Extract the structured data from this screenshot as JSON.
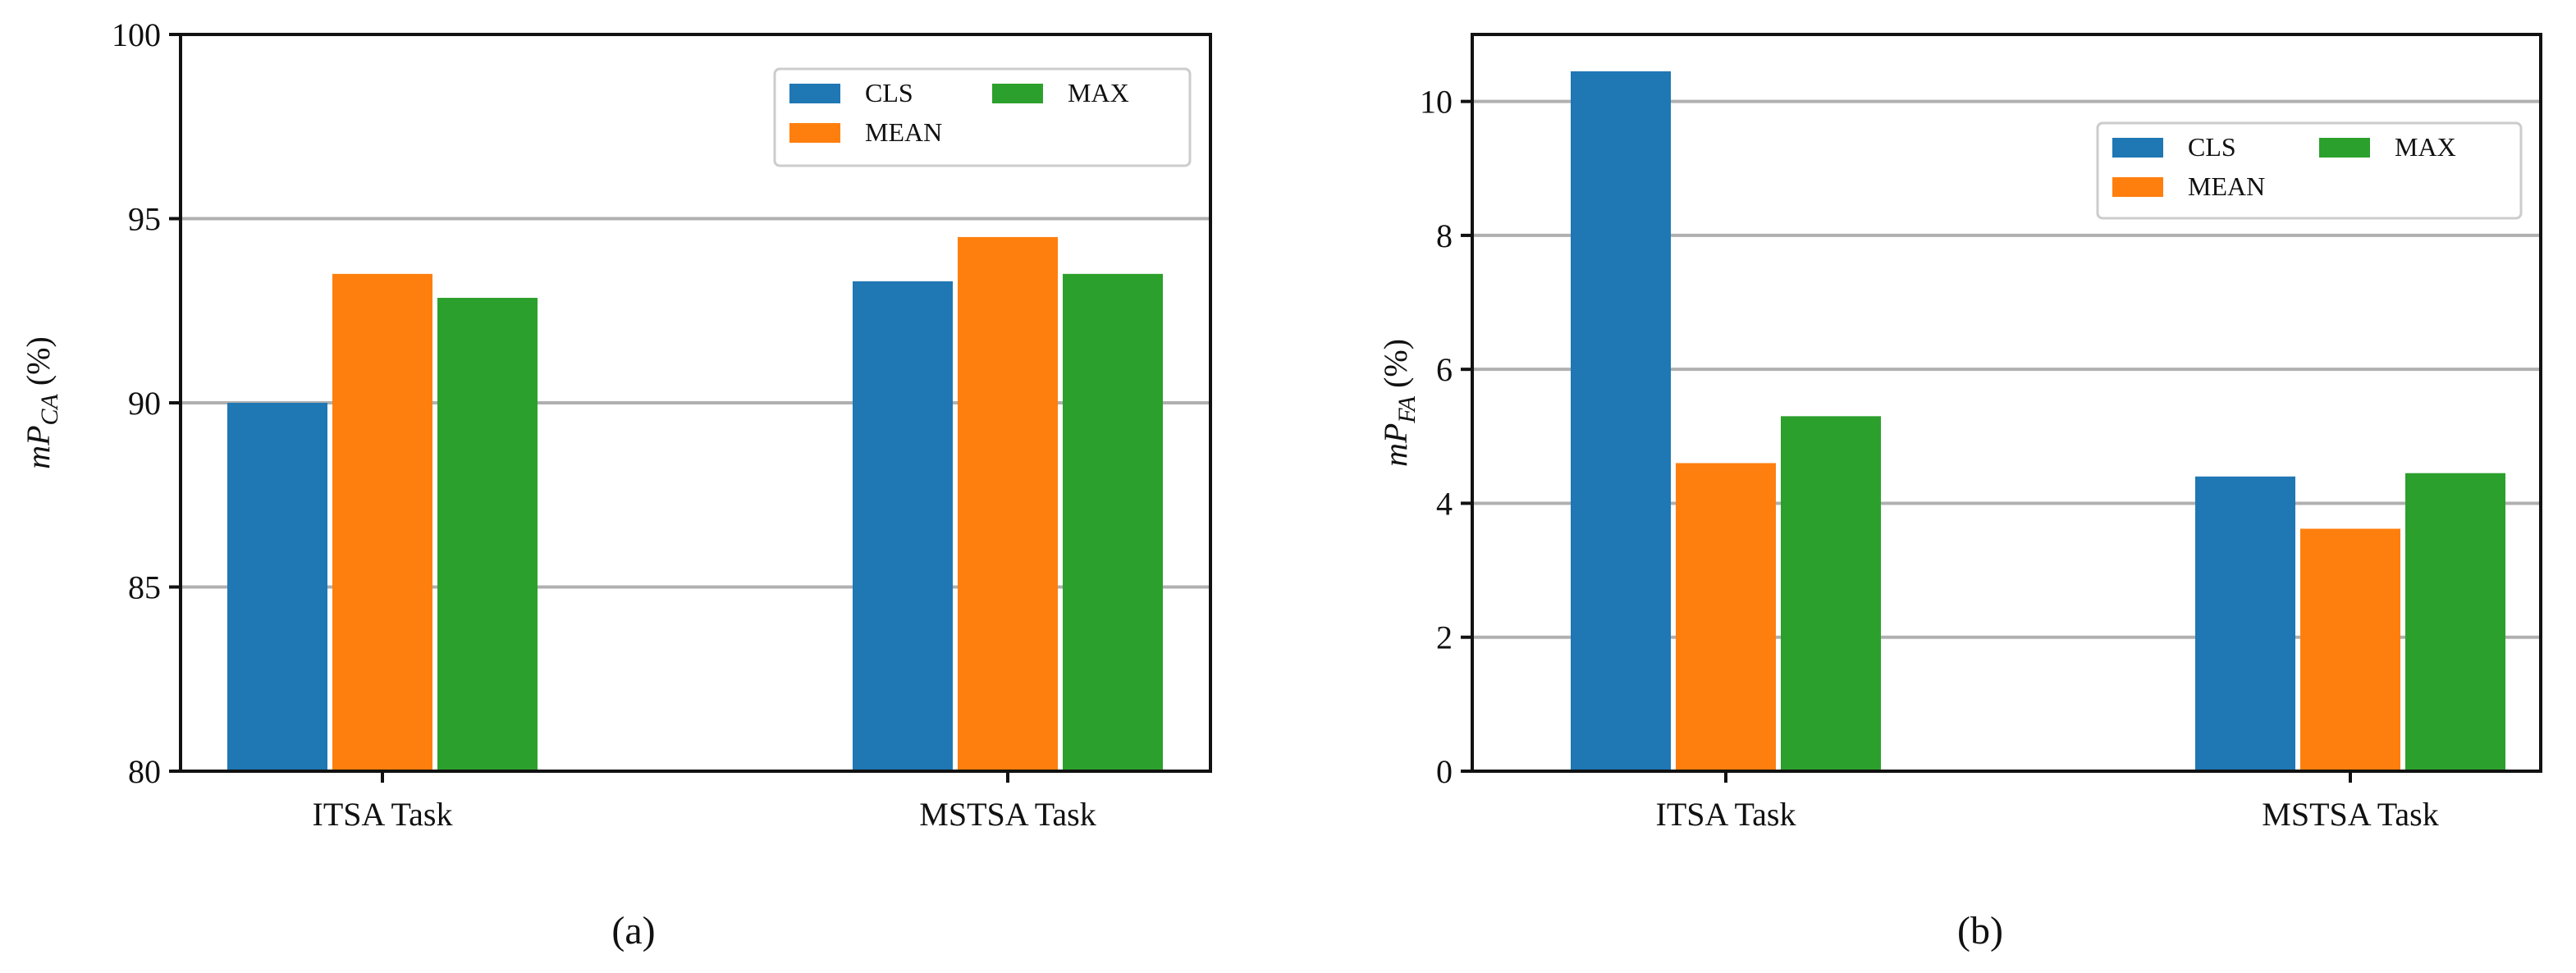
{
  "chart_data": [
    {
      "type": "bar",
      "caption": "(a)",
      "ylabel": {
        "prefix": "mP",
        "subscript": "CA",
        "suffix": " (%)"
      },
      "xlabel": "",
      "categories": [
        "ITSA Task",
        "MSTSA Task"
      ],
      "series": [
        {
          "name": "CLS",
          "color": "#1f77b4",
          "values": [
            90.0,
            93.3
          ]
        },
        {
          "name": "MEAN",
          "color": "#ff7f0e",
          "values": [
            93.5,
            94.5
          ]
        },
        {
          "name": "MAX",
          "color": "#2ca02c",
          "values": [
            92.85,
            93.5
          ]
        }
      ],
      "ylim": [
        80,
        100
      ],
      "yticks": [
        80,
        85,
        90,
        95,
        100
      ],
      "grid": "horizontal",
      "legend_position": "top-right",
      "legend_columns": 2
    },
    {
      "type": "bar",
      "caption": "(b)",
      "ylabel": {
        "prefix": "mP",
        "subscript": "FA",
        "suffix": " (%)"
      },
      "xlabel": "",
      "categories": [
        "ITSA Task",
        "MSTSA Task"
      ],
      "series": [
        {
          "name": "CLS",
          "color": "#1f77b4",
          "values": [
            10.45,
            4.4
          ]
        },
        {
          "name": "MEAN",
          "color": "#ff7f0e",
          "values": [
            4.6,
            3.62
          ]
        },
        {
          "name": "MAX",
          "color": "#2ca02c",
          "values": [
            5.3,
            4.45
          ]
        }
      ],
      "ylim": [
        0,
        11
      ],
      "yticks": [
        0,
        2,
        4,
        6,
        8,
        10
      ],
      "grid": "horizontal",
      "legend_position": "upper-right",
      "legend_columns": 2
    }
  ]
}
